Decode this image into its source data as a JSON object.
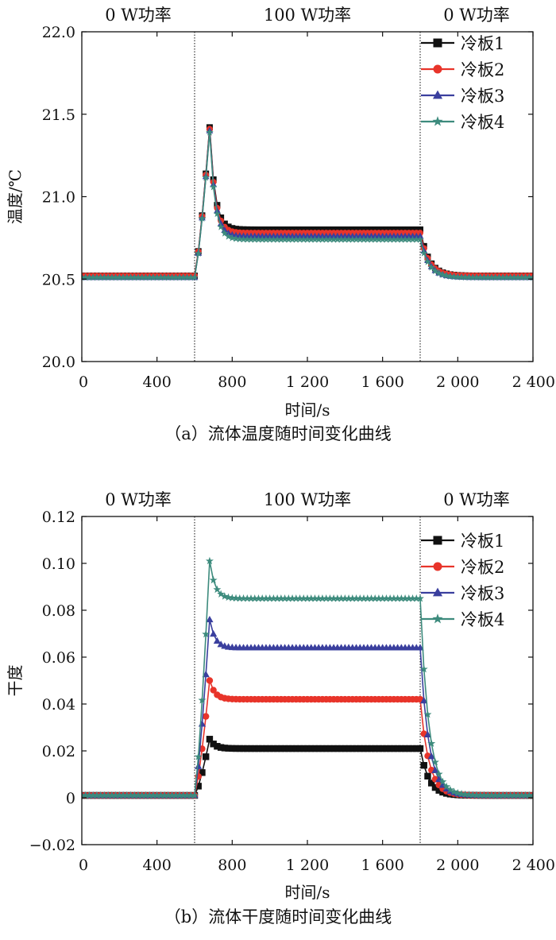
{
  "chart_data": [
    {
      "type": "line",
      "caption": "（a）流体温度随时间变化曲线",
      "xlabel": "时间/s",
      "ylabel": "温度/℃",
      "xlim": [
        0,
        2400
      ],
      "ylim": [
        20.0,
        22.0
      ],
      "xticks": [
        0,
        400,
        800,
        1200,
        1600,
        2000,
        2400
      ],
      "xtick_labels": [
        "0",
        "400",
        "800",
        "1 200",
        "1 600",
        "2 000",
        "2 400"
      ],
      "yticks": [
        20.0,
        20.5,
        21.0,
        21.5,
        22.0
      ],
      "ytick_labels": [
        "20.0",
        "20.5",
        "21.0",
        "21.5",
        "22.0"
      ],
      "phases": [
        {
          "label": "0 W功率",
          "start": 0,
          "end": 600
        },
        {
          "label": "100 W功率",
          "start": 600,
          "end": 1800
        },
        {
          "label": "0 W功率",
          "start": 1800,
          "end": 2400
        }
      ],
      "dividers": [
        600,
        1800
      ],
      "legend_position": "top-right",
      "grid": false,
      "sample_step": 20,
      "series": [
        {
          "name": "冷板1",
          "color": "#111111",
          "marker": "square",
          "base": 20.52,
          "peak": 21.42,
          "steady": 20.8
        },
        {
          "name": "冷板2",
          "color": "#e8342a",
          "marker": "circle",
          "base": 20.52,
          "peak": 21.41,
          "steady": 20.78
        },
        {
          "name": "冷板3",
          "color": "#3a3f9e",
          "marker": "triangle",
          "base": 20.51,
          "peak": 21.4,
          "steady": 20.76
        },
        {
          "name": "冷板4",
          "color": "#3d8b7d",
          "marker": "star",
          "base": 20.51,
          "peak": 21.39,
          "steady": 20.74
        }
      ]
    },
    {
      "type": "line",
      "caption": "（b）流体干度随时间变化曲线",
      "xlabel": "时间/s",
      "ylabel": "干度",
      "xlim": [
        0,
        2400
      ],
      "ylim": [
        -0.02,
        0.12
      ],
      "xticks": [
        0,
        400,
        800,
        1200,
        1600,
        2000,
        2400
      ],
      "xtick_labels": [
        "0",
        "400",
        "800",
        "1 200",
        "1 600",
        "2 000",
        "2 400"
      ],
      "yticks": [
        -0.02,
        0,
        0.02,
        0.04,
        0.06,
        0.08,
        0.1,
        0.12
      ],
      "ytick_labels": [
        "−0.02",
        "0",
        "0.02",
        "0.04",
        "0.06",
        "0.08",
        "0.10",
        "0.12"
      ],
      "phases": [
        {
          "label": "0 W功率",
          "start": 0,
          "end": 600
        },
        {
          "label": "100 W功率",
          "start": 600,
          "end": 1800
        },
        {
          "label": "0 W功率",
          "start": 1800,
          "end": 2400
        }
      ],
      "dividers": [
        600,
        1800
      ],
      "legend_position": "top-right",
      "grid": false,
      "sample_step": 20,
      "series": [
        {
          "name": "冷板1",
          "color": "#111111",
          "marker": "square",
          "base": 0.001,
          "peak": 0.025,
          "steady": 0.021
        },
        {
          "name": "冷板2",
          "color": "#e8342a",
          "marker": "circle",
          "base": 0.001,
          "peak": 0.05,
          "steady": 0.042
        },
        {
          "name": "冷板3",
          "color": "#3a3f9e",
          "marker": "triangle",
          "base": 0.001,
          "peak": 0.076,
          "steady": 0.064
        },
        {
          "name": "冷板4",
          "color": "#3d8b7d",
          "marker": "star",
          "base": 0.001,
          "peak": 0.101,
          "steady": 0.085
        }
      ]
    }
  ]
}
